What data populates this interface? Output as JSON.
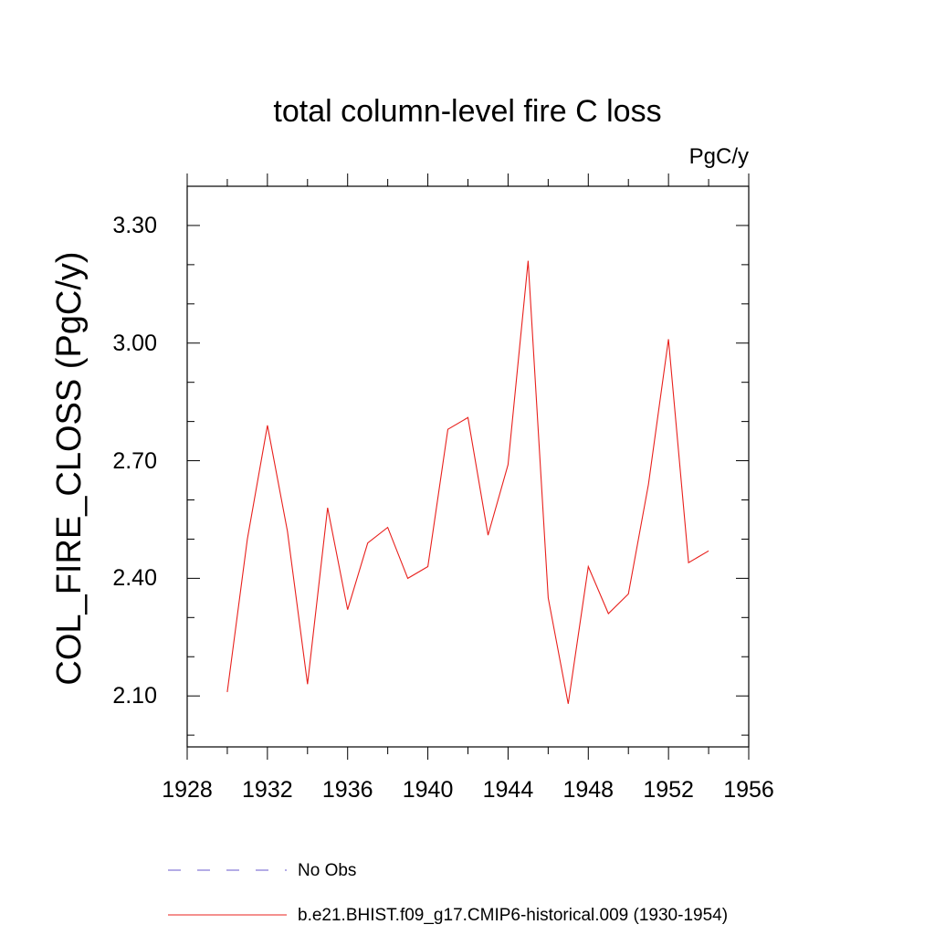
{
  "chart_data": {
    "type": "line",
    "title": "total column-level fire C loss",
    "units_label": "PgC/y",
    "xlabel": "",
    "ylabel": "COL_FIRE_CLOSS  (PgC/y)",
    "xlim": [
      1928,
      1956
    ],
    "ylim": [
      1.97,
      3.4
    ],
    "x_ticks": [
      1928,
      1932,
      1936,
      1940,
      1944,
      1948,
      1952,
      1956
    ],
    "x_tick_labels": [
      "1928",
      "1932",
      "1936",
      "1940",
      "1944",
      "1948",
      "1952",
      "1956"
    ],
    "y_ticks": [
      2.1,
      2.4,
      2.7,
      3.0,
      3.3
    ],
    "y_tick_labels": [
      "2.10",
      "2.40",
      "2.70",
      "3.00",
      "3.30"
    ],
    "y_minor_step": 0.1,
    "x_minor_step": 2,
    "series": [
      {
        "name": "b.e21.BHIST.f09_g17.CMIP6-historical.009 (1930-1954)",
        "color": "#e8201c",
        "style": "solid",
        "x": [
          1930,
          1931,
          1932,
          1933,
          1934,
          1935,
          1936,
          1937,
          1938,
          1939,
          1940,
          1941,
          1942,
          1943,
          1944,
          1945,
          1946,
          1947,
          1948,
          1949,
          1950,
          1951,
          1952,
          1953,
          1954
        ],
        "values": [
          2.11,
          2.5,
          2.79,
          2.52,
          2.13,
          2.58,
          2.32,
          2.49,
          2.53,
          2.4,
          2.43,
          2.78,
          2.81,
          2.51,
          2.69,
          3.21,
          2.35,
          2.08,
          2.43,
          2.31,
          2.36,
          2.64,
          3.01,
          2.44,
          2.47
        ]
      }
    ],
    "legend": [
      {
        "label": "No Obs",
        "color": "#6a5acd",
        "style": "dashed"
      },
      {
        "label": "b.e21.BHIST.f09_g17.CMIP6-historical.009 (1930-1954)",
        "color": "#e8201c",
        "style": "solid"
      }
    ]
  }
}
